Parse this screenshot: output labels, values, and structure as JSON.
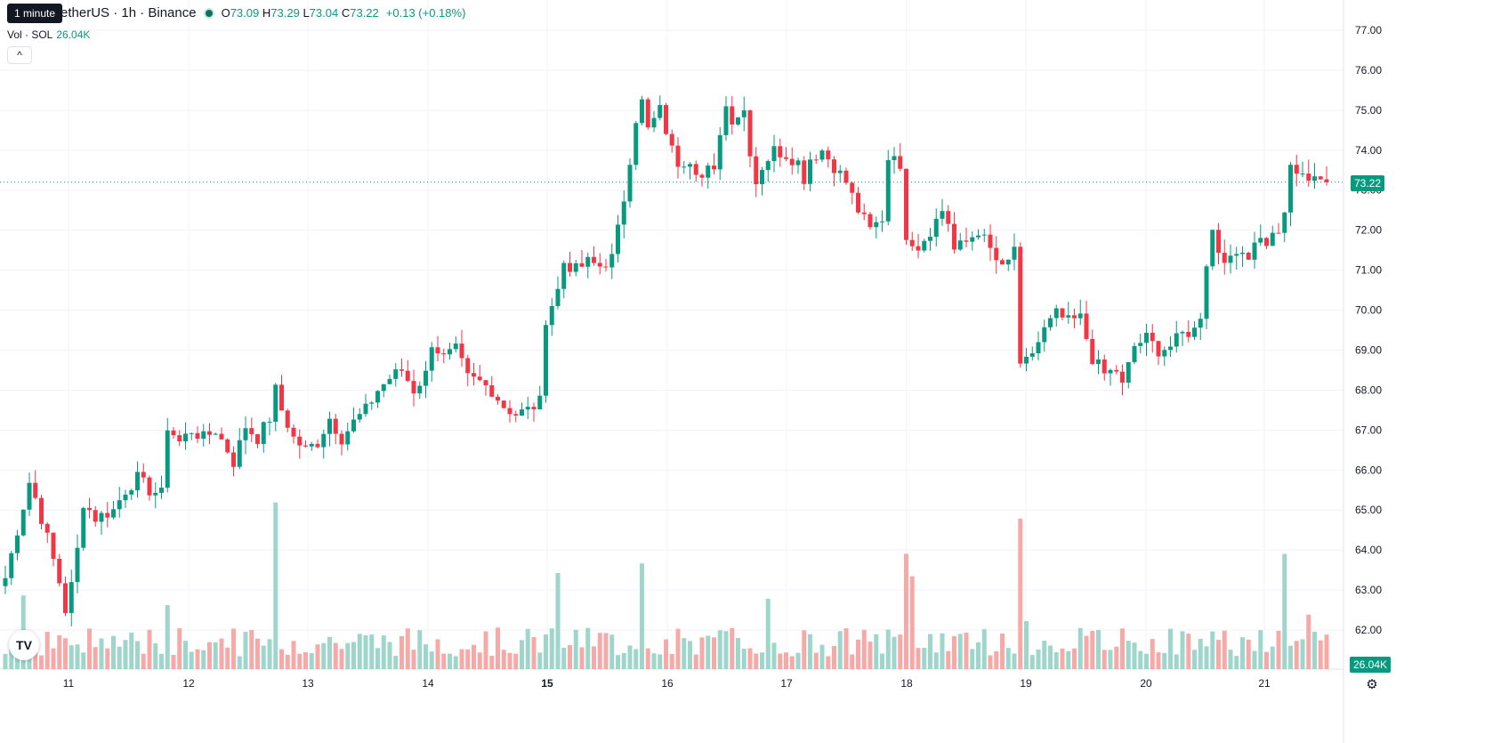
{
  "header": {
    "tooltip": "1 minute",
    "symbol": "etherUS · 1h · Binance",
    "o_label": "O",
    "o_value": "73.09",
    "h_label": "H",
    "h_value": "73.29",
    "l_label": "L",
    "l_value": "73.04",
    "c_label": "C",
    "c_value": "73.22",
    "change": "+0.13 (+0.18%)"
  },
  "volume_legend": {
    "label": "Vol · SOL",
    "value": "26.04K"
  },
  "collapse_label": "^",
  "last_price_label": "73.22",
  "last_volume_label": "26.04K",
  "colors": {
    "up": "#089981",
    "down": "#f23645",
    "up_vol": "#9ed6cc",
    "down_vol": "#f7a9a8",
    "grid": "#f0f3fa"
  },
  "chart_data": {
    "type": "candlestick",
    "y_ticks": [
      "77.00",
      "76.00",
      "75.00",
      "74.00",
      "73.00",
      "72.00",
      "71.00",
      "70.00",
      "69.00",
      "68.00",
      "67.00",
      "66.00",
      "65.00",
      "64.00",
      "63.00",
      "62.00"
    ],
    "ylim": [
      61.2,
      77.3
    ],
    "x_ticks": [
      "11",
      "12",
      "13",
      "14",
      "15",
      "16",
      "17",
      "18",
      "19",
      "20",
      "21"
    ],
    "x_ticks_bold": [
      "15"
    ],
    "grid": true,
    "anchors": [
      [
        0,
        63.3
      ],
      [
        2,
        64.5
      ],
      [
        4,
        65.7
      ],
      [
        5,
        65.3
      ],
      [
        7,
        64.3
      ],
      [
        9,
        63.2
      ],
      [
        10,
        62.5
      ],
      [
        11,
        63.1
      ],
      [
        12,
        64.0
      ],
      [
        13,
        65.2
      ],
      [
        15,
        64.8
      ],
      [
        18,
        65.0
      ],
      [
        20,
        65.5
      ],
      [
        22,
        65.8
      ],
      [
        24,
        65.5
      ],
      [
        26,
        65.4
      ],
      [
        27,
        67.1
      ],
      [
        29,
        66.7
      ],
      [
        31,
        67.0
      ],
      [
        33,
        66.8
      ],
      [
        35,
        67.0
      ],
      [
        37,
        66.5
      ],
      [
        38,
        66.2
      ],
      [
        40,
        67.1
      ],
      [
        42,
        66.8
      ],
      [
        44,
        67.3
      ],
      [
        45,
        68.0
      ],
      [
        46,
        67.5
      ],
      [
        48,
        66.8
      ],
      [
        50,
        66.5
      ],
      [
        52,
        66.7
      ],
      [
        54,
        67.3
      ],
      [
        56,
        66.8
      ],
      [
        58,
        67.2
      ],
      [
        60,
        67.5
      ],
      [
        62,
        68.0
      ],
      [
        64,
        68.3
      ],
      [
        66,
        68.5
      ],
      [
        68,
        68.0
      ],
      [
        70,
        68.4
      ],
      [
        71,
        69.2
      ],
      [
        73,
        68.8
      ],
      [
        75,
        69.0
      ],
      [
        77,
        68.3
      ],
      [
        79,
        68.2
      ],
      [
        81,
        68.0
      ],
      [
        83,
        67.6
      ],
      [
        85,
        67.4
      ],
      [
        87,
        67.5
      ],
      [
        89,
        67.7
      ],
      [
        90,
        69.8
      ],
      [
        92,
        70.5
      ],
      [
        93,
        71.2
      ],
      [
        95,
        71.0
      ],
      [
        97,
        71.2
      ],
      [
        99,
        71.1
      ],
      [
        101,
        71.3
      ],
      [
        102,
        72.0
      ],
      [
        103,
        72.8
      ],
      [
        104,
        73.8
      ],
      [
        105,
        74.8
      ],
      [
        106,
        75.2
      ],
      [
        107,
        74.5
      ],
      [
        109,
        75.0
      ],
      [
        111,
        74.0
      ],
      [
        112,
        73.7
      ],
      [
        114,
        73.8
      ],
      [
        116,
        73.3
      ],
      [
        117,
        73.5
      ],
      [
        118,
        73.4
      ],
      [
        119,
        74.5
      ],
      [
        120,
        75.1
      ],
      [
        121,
        74.8
      ],
      [
        123,
        75.0
      ],
      [
        124,
        74.0
      ],
      [
        125,
        73.2
      ],
      [
        126,
        73.6
      ],
      [
        128,
        74.0
      ],
      [
        130,
        73.9
      ],
      [
        132,
        73.7
      ],
      [
        133,
        73.3
      ],
      [
        134,
        73.8
      ],
      [
        136,
        74.0
      ],
      [
        138,
        73.6
      ],
      [
        140,
        73.2
      ],
      [
        142,
        72.5
      ],
      [
        144,
        72.0
      ],
      [
        146,
        72.3
      ],
      [
        147,
        73.8
      ],
      [
        148,
        74.0
      ],
      [
        149,
        73.4
      ],
      [
        150,
        71.9
      ],
      [
        152,
        71.6
      ],
      [
        154,
        72.0
      ],
      [
        156,
        72.5
      ],
      [
        157,
        72.2
      ],
      [
        158,
        71.5
      ],
      [
        160,
        71.7
      ],
      [
        162,
        72.0
      ],
      [
        164,
        71.5
      ],
      [
        166,
        71.0
      ],
      [
        167,
        71.2
      ],
      [
        168,
        71.6
      ],
      [
        169,
        68.5
      ],
      [
        170,
        68.7
      ],
      [
        172,
        69.2
      ],
      [
        173,
        69.5
      ],
      [
        175,
        69.9
      ],
      [
        177,
        69.7
      ],
      [
        179,
        69.8
      ],
      [
        180,
        69.3
      ],
      [
        181,
        68.8
      ],
      [
        183,
        68.4
      ],
      [
        185,
        68.5
      ],
      [
        186,
        68.1
      ],
      [
        187,
        68.6
      ],
      [
        188,
        69.1
      ],
      [
        190,
        69.3
      ],
      [
        192,
        69.0
      ],
      [
        194,
        69.1
      ],
      [
        196,
        69.4
      ],
      [
        198,
        69.5
      ],
      [
        199,
        69.9
      ],
      [
        200,
        71.2
      ],
      [
        201,
        72.0
      ],
      [
        202,
        71.5
      ],
      [
        204,
        71.2
      ],
      [
        206,
        71.6
      ],
      [
        207,
        71.3
      ],
      [
        208,
        71.8
      ],
      [
        210,
        71.7
      ],
      [
        212,
        72.0
      ],
      [
        213,
        72.3
      ],
      [
        214,
        73.6
      ],
      [
        216,
        73.3
      ],
      [
        218,
        73.4
      ],
      [
        219,
        73.3
      ],
      [
        220,
        73.2
      ]
    ],
    "volume_spikes": [
      [
        45,
        5.2
      ],
      [
        3,
        2.3
      ],
      [
        27,
        2.0
      ],
      [
        92,
        3.0
      ],
      [
        106,
        3.3
      ],
      [
        127,
        2.2
      ],
      [
        150,
        3.6
      ],
      [
        151,
        2.9
      ],
      [
        169,
        4.7
      ],
      [
        170,
        1.5
      ],
      [
        213,
        3.6
      ],
      [
        217,
        1.7
      ],
      [
        219,
        0.9
      ]
    ]
  }
}
